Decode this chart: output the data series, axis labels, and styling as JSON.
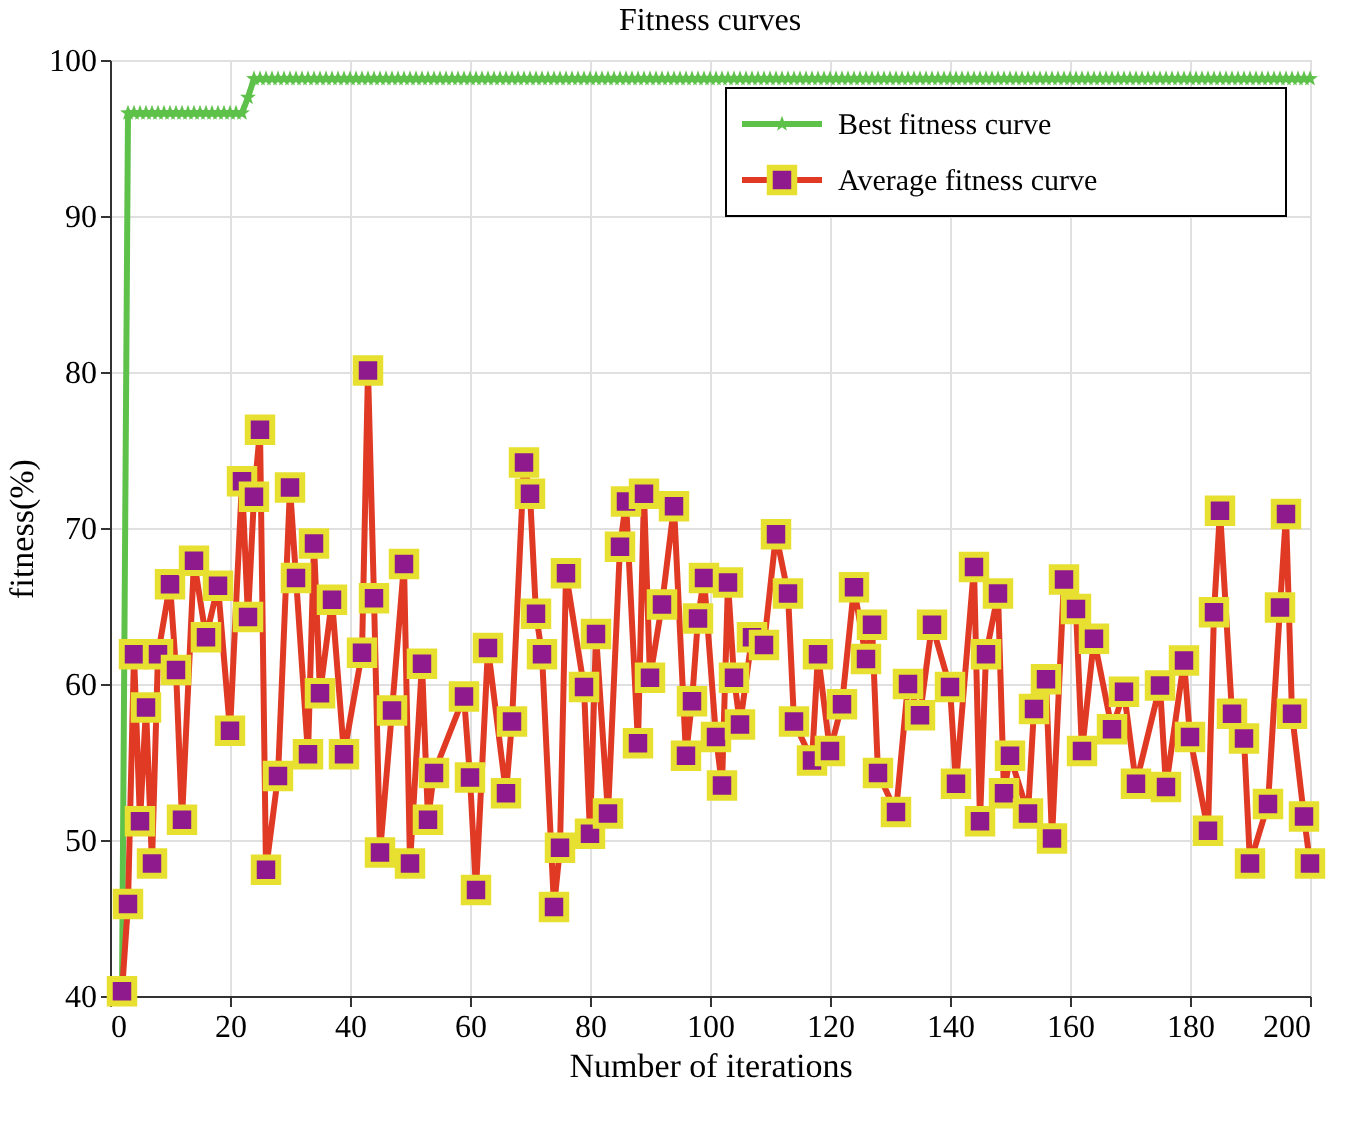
{
  "chart_data": {
    "type": "line",
    "title": "Fitness curves",
    "xlabel": "Number of iterations",
    "ylabel": "fitness(%)",
    "xlim": [
      0,
      200
    ],
    "xticks": [
      0,
      20,
      40,
      60,
      80,
      100,
      120,
      140,
      160,
      180,
      200
    ],
    "ylim": [
      40,
      100
    ],
    "yticks": [
      40,
      50,
      60,
      70,
      80,
      90,
      100
    ],
    "grid": true,
    "legend": "top right",
    "series": [
      {
        "name": "Best fitness curve",
        "color": "#5ec14a",
        "marker": "star",
        "x": [
          2,
          3,
          4,
          5,
          6,
          7,
          8,
          9,
          10,
          11,
          12,
          13,
          14,
          15,
          16,
          17,
          18,
          19,
          20,
          21,
          22,
          23,
          24,
          25,
          26,
          27,
          28,
          29,
          30,
          31,
          32,
          33,
          34,
          35,
          36,
          37,
          38,
          39,
          40,
          41,
          42,
          43,
          44,
          45,
          46,
          47,
          48,
          49,
          50,
          51,
          52,
          53,
          54,
          55,
          56,
          57,
          58,
          59,
          60,
          61,
          62,
          63,
          64,
          65,
          66,
          67,
          68,
          69,
          70,
          71,
          72,
          73,
          74,
          75,
          76,
          77,
          78,
          79,
          80,
          81,
          82,
          83,
          84,
          85,
          86,
          87,
          88,
          89,
          90,
          91,
          92,
          93,
          94,
          95,
          96,
          97,
          98,
          99,
          100,
          101,
          102,
          103,
          104,
          105,
          106,
          107,
          108,
          109,
          110,
          111,
          112,
          113,
          114,
          115,
          116,
          117,
          118,
          119,
          120,
          121,
          122,
          123,
          124,
          125,
          126,
          127,
          128,
          129,
          130,
          131,
          132,
          133,
          134,
          135,
          136,
          137,
          138,
          139,
          140,
          141,
          142,
          143,
          144,
          145,
          146,
          147,
          148,
          149,
          150,
          151,
          152,
          153,
          154,
          155,
          156,
          157,
          158,
          159,
          160,
          161,
          162,
          163,
          164,
          165,
          166,
          167,
          168,
          169,
          170,
          171,
          172,
          173,
          174,
          175,
          176,
          177,
          178,
          179,
          180,
          181,
          182,
          183,
          184,
          185,
          186,
          187,
          188,
          189,
          190,
          191,
          192,
          193,
          194,
          195,
          196,
          197,
          198,
          199,
          200
        ],
        "values": [
          40.3,
          96.6,
          96.6,
          96.6,
          96.6,
          96.6,
          96.6,
          96.6,
          96.6,
          96.6,
          96.6,
          96.6,
          96.6,
          96.6,
          96.6,
          96.6,
          96.6,
          96.6,
          96.6,
          96.6,
          96.6,
          97.6,
          98.8,
          98.8,
          98.8,
          98.8,
          98.8,
          98.8,
          98.8,
          98.8,
          98.8,
          98.8,
          98.8,
          98.8,
          98.8,
          98.8,
          98.8,
          98.8,
          98.8,
          98.8,
          98.8,
          98.8,
          98.8,
          98.8,
          98.8,
          98.8,
          98.8,
          98.8,
          98.8,
          98.8,
          98.8,
          98.8,
          98.8,
          98.8,
          98.8,
          98.8,
          98.8,
          98.8,
          98.8,
          98.8,
          98.8,
          98.8,
          98.8,
          98.8,
          98.8,
          98.8,
          98.8,
          98.8,
          98.8,
          98.8,
          98.8,
          98.8,
          98.8,
          98.8,
          98.8,
          98.8,
          98.8,
          98.8,
          98.8,
          98.8,
          98.8,
          98.8,
          98.8,
          98.8,
          98.8,
          98.8,
          98.8,
          98.8,
          98.8,
          98.8,
          98.8,
          98.8,
          98.8,
          98.8,
          98.8,
          98.8,
          98.8,
          98.8,
          98.8,
          98.8,
          98.8,
          98.8,
          98.8,
          98.8,
          98.8,
          98.8,
          98.8,
          98.8,
          98.8,
          98.8,
          98.8,
          98.8,
          98.8,
          98.8,
          98.8,
          98.8,
          98.8,
          98.8,
          98.8,
          98.8,
          98.8,
          98.8,
          98.8,
          98.8,
          98.8,
          98.8,
          98.8,
          98.8,
          98.8,
          98.8,
          98.8,
          98.8,
          98.8,
          98.8,
          98.8,
          98.8,
          98.8,
          98.8,
          98.8,
          98.8,
          98.8,
          98.8,
          98.8,
          98.8,
          98.8,
          98.8,
          98.8,
          98.8,
          98.8,
          98.8,
          98.8,
          98.8,
          98.8,
          98.8,
          98.8,
          98.8,
          98.8,
          98.8,
          98.8,
          98.8,
          98.8,
          98.8,
          98.8,
          98.8,
          98.8,
          98.8,
          98.8,
          98.8,
          98.8,
          98.8,
          98.8,
          98.8,
          98.8,
          98.8,
          98.8,
          98.8,
          98.8,
          98.8,
          98.8,
          98.8,
          98.8,
          98.8,
          98.8,
          98.8,
          98.8,
          98.8,
          98.8,
          98.8,
          98.8,
          98.8,
          98.8,
          98.8,
          98.8,
          98.8,
          98.8,
          98.8,
          98.8,
          98.8,
          98.8
        ]
      },
      {
        "name": "Average fitness curve",
        "color": "#e03a25",
        "marker": "square",
        "x": [
          2,
          3,
          4,
          5,
          6,
          7,
          8,
          10,
          11,
          12,
          14,
          16,
          18,
          20,
          22,
          23,
          24,
          25,
          26,
          28,
          30,
          31,
          33,
          34,
          35,
          37,
          39,
          42,
          43,
          44,
          45,
          47,
          49,
          50,
          52,
          53,
          54,
          59,
          60,
          61,
          63,
          66,
          67,
          69,
          70,
          71,
          72,
          74,
          75,
          76,
          79,
          80,
          81,
          83,
          85,
          86,
          88,
          89,
          90,
          92,
          94,
          96,
          97,
          98,
          99,
          101,
          102,
          103,
          104,
          105,
          107,
          109,
          111,
          113,
          114,
          117,
          118,
          120,
          122,
          124,
          126,
          127,
          128,
          131,
          133,
          135,
          137,
          140,
          141,
          144,
          145,
          146,
          148,
          149,
          150,
          153,
          154,
          156,
          157,
          159,
          161,
          162,
          164,
          167,
          169,
          171,
          175,
          176,
          179,
          180,
          183,
          184,
          185,
          187,
          189,
          190,
          193,
          195,
          196,
          197,
          199,
          200
        ],
        "values": [
          40.3,
          45.9,
          61.9,
          51.2,
          58.5,
          48.5,
          61.9,
          66.4,
          60.9,
          51.3,
          67.9,
          63,
          66.3,
          57,
          73,
          64.3,
          72,
          76.3,
          48.1,
          54.1,
          72.6,
          66.8,
          55.5,
          69,
          59.4,
          65.4,
          55.5,
          62,
          80.1,
          65.5,
          49.2,
          58.3,
          67.7,
          48.5,
          61.3,
          51.3,
          54.3,
          59.2,
          54,
          46.8,
          62.3,
          53,
          57.6,
          74.2,
          72.2,
          64.5,
          61.9,
          45.7,
          49.5,
          67.1,
          59.8,
          50.4,
          63.2,
          51.7,
          68.8,
          71.7,
          56.2,
          72.2,
          60.4,
          65.1,
          71.4,
          55.4,
          58.9,
          64.2,
          66.8,
          56.6,
          53.5,
          66.5,
          60.4,
          57.4,
          63,
          62.5,
          69.6,
          65.8,
          57.6,
          55.1,
          61.9,
          55.7,
          58.7,
          66.2,
          61.6,
          63.8,
          54.3,
          51.8,
          60,
          58,
          63.8,
          59.8,
          53.6,
          67.5,
          51.2,
          61.9,
          65.8,
          53,
          55.4,
          51.7,
          58.4,
          60.3,
          50.1,
          66.7,
          64.8,
          55.7,
          62.9,
          57.1,
          59.5,
          53.6,
          59.9,
          53.4,
          61.5,
          56.6,
          50.6,
          64.6,
          71.1,
          58.1,
          56.5,
          48.5,
          52.3,
          64.9,
          70.9,
          58.1,
          51.5,
          48.5
        ]
      }
    ]
  }
}
